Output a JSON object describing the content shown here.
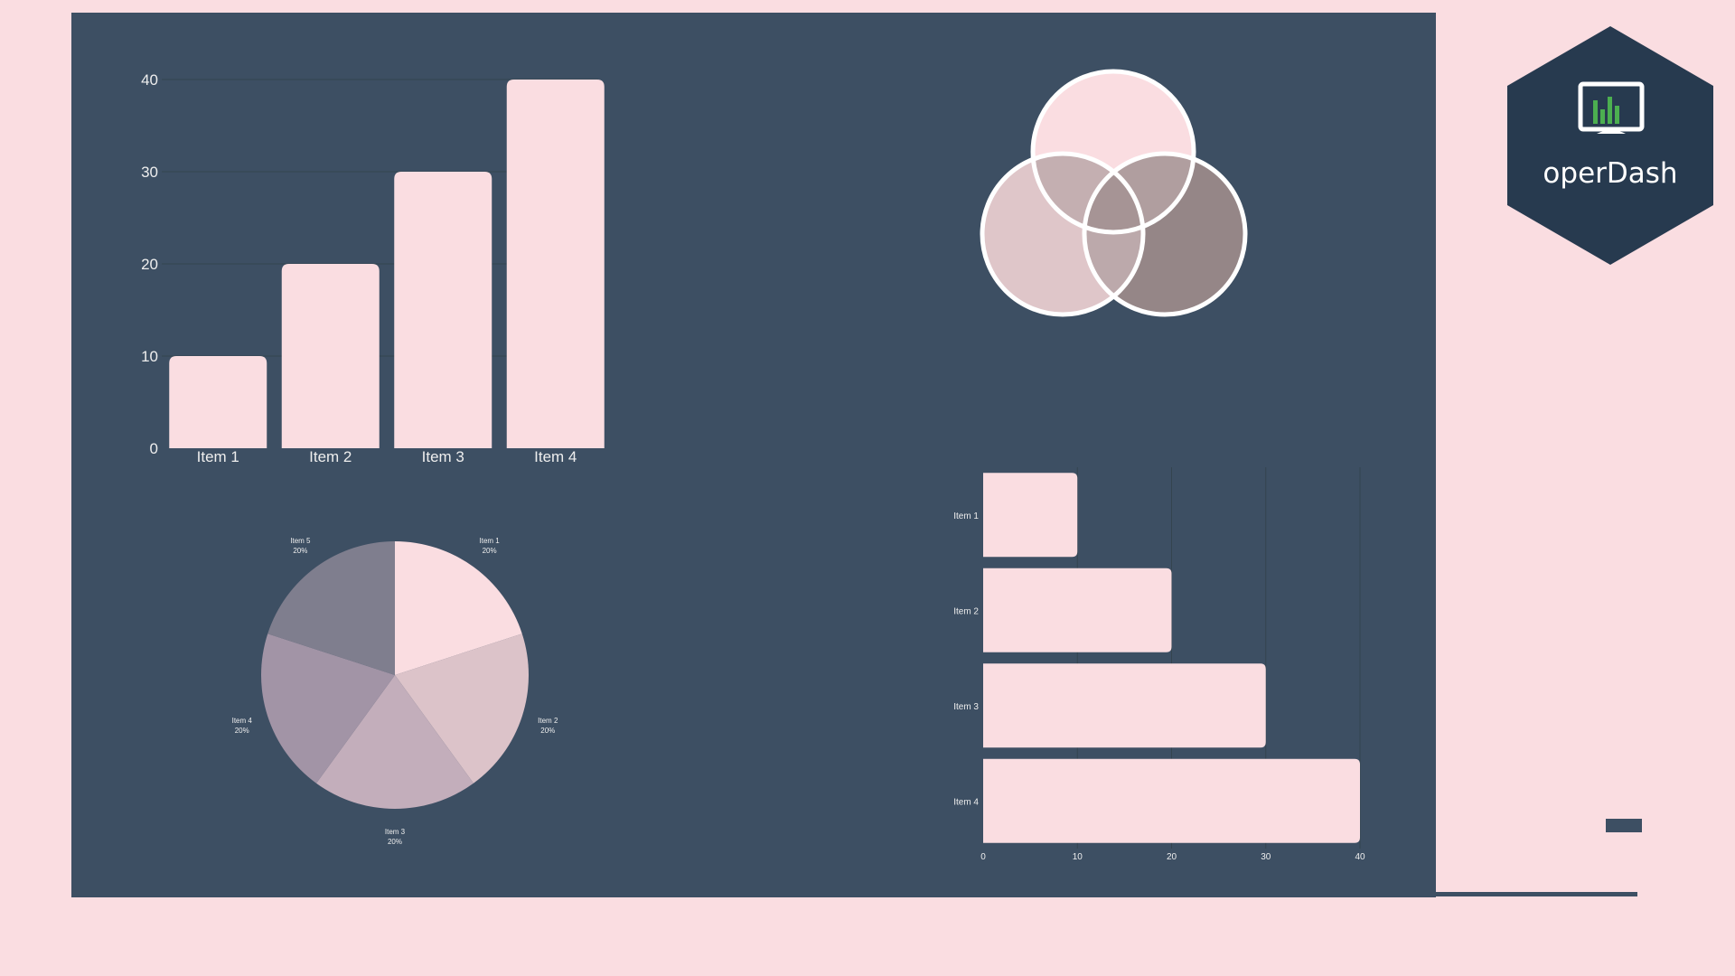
{
  "colors": {
    "background": "#fadde1",
    "panel": "#3d4f63",
    "bar": "#fadde1",
    "gridline": "#34444f",
    "axis_text": "#eeeeee",
    "logo_bg": "#273a4f",
    "logo_accent": "#4caf50"
  },
  "brand": {
    "name": "operDash",
    "icon": "monitor-bar-chart-icon"
  },
  "chart_data": [
    {
      "type": "bar",
      "orientation": "vertical",
      "categories": [
        "Item 1",
        "Item 2",
        "Item 3",
        "Item 4"
      ],
      "values": [
        10,
        20,
        30,
        40
      ],
      "ylim": [
        0,
        40
      ],
      "yticks": [
        0,
        10,
        20,
        30,
        40
      ],
      "grid": true,
      "title": "",
      "xlabel": "",
      "ylabel": ""
    },
    {
      "type": "venn",
      "sets": 3,
      "fill_colors": [
        "#fadde1",
        "#dfc6c9",
        "#958687"
      ],
      "overlap_colors": [
        "#c4afb1",
        "#b09e9f",
        "#a69495",
        "#bca9ab"
      ]
    },
    {
      "type": "pie",
      "categories": [
        "Item 1",
        "Item 2",
        "Item 3",
        "Item 4",
        "Item 5"
      ],
      "values": [
        20,
        20,
        20,
        20,
        20
      ],
      "labels": [
        "20%",
        "20%",
        "20%",
        "20%",
        "20%"
      ],
      "colors": [
        "#fadde1",
        "#dcc3c9",
        "#c3aebb",
        "#a294a6",
        "#7f7e8e"
      ]
    },
    {
      "type": "bar",
      "orientation": "horizontal",
      "categories": [
        "Item 1",
        "Item 2",
        "Item 3",
        "Item 4"
      ],
      "values": [
        10,
        20,
        30,
        40
      ],
      "xlim": [
        0,
        40
      ],
      "xticks": [
        0,
        10,
        20,
        30,
        40
      ],
      "grid": true,
      "title": "",
      "xlabel": "",
      "ylabel": ""
    }
  ]
}
